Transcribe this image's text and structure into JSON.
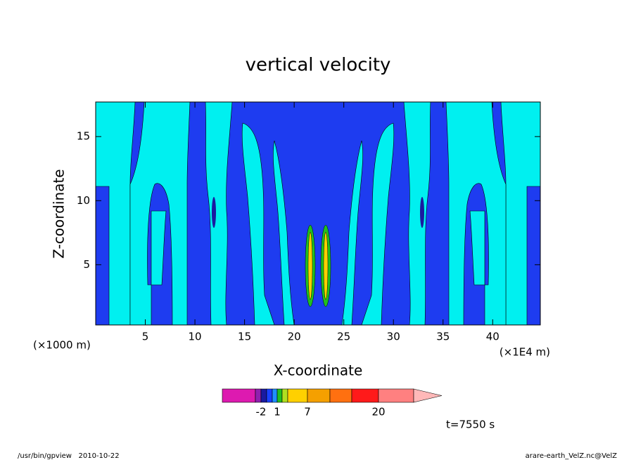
{
  "chart_data": {
    "type": "contour",
    "title": "vertical velocity",
    "xlabel": "X-coordinate",
    "ylabel": "Z-coordinate",
    "xunit_left": "(×1000 m)",
    "xunit_right": "(×1E4 m)",
    "xlim": [
      0,
      44.8
    ],
    "ylim": [
      0.3,
      17.7
    ],
    "xticks": [
      5,
      10,
      15,
      20,
      25,
      30,
      35,
      40
    ],
    "yticks": [
      5,
      10,
      15
    ],
    "field_colors": {
      "low": "#1e3cf0",
      "mid": "#00f0f0"
    },
    "colorbar": {
      "colors": [
        "#dd1ab0",
        "#9020b0",
        "#1a1aa0",
        "#1a40ff",
        "#1e90ff",
        "#20c020",
        "#b0e020",
        "#ffd000",
        "#f5a000",
        "#ff7010",
        "#ff1a1a",
        "#ff8080",
        "#ffb8b8"
      ],
      "ticks": [
        -2,
        1,
        7,
        20
      ]
    },
    "annotation": "t=7550 s",
    "footer_left": "/usr/bin/gpview   2010-10-22",
    "footer_right": "arare-earth_VelZ.nc@VelZ"
  }
}
